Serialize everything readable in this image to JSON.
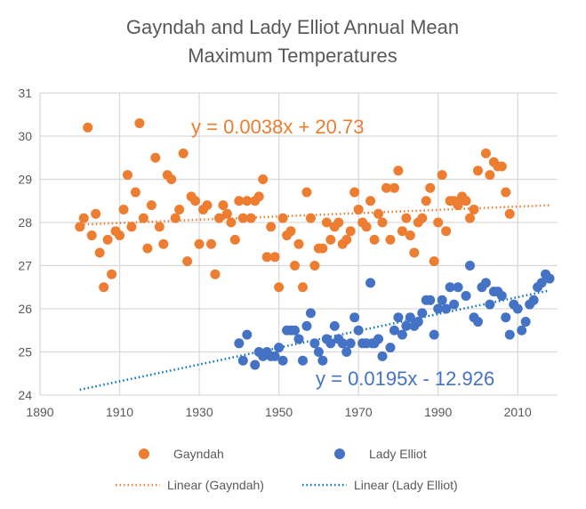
{
  "chart_data": {
    "type": "scatter",
    "title": [
      "Gayndah and Lady Elliot Annual Mean",
      "Maximum Temperatures"
    ],
    "xlabel": "",
    "ylabel": "",
    "xlim": [
      1890,
      2020
    ],
    "ylim": [
      24,
      31
    ],
    "x_ticks": [
      "1890",
      "1910",
      "1930",
      "1950",
      "1970",
      "1990",
      "2010"
    ],
    "x_tick_values": [
      1890,
      1910,
      1930,
      1950,
      1970,
      1990,
      2010
    ],
    "y_ticks": [
      "24",
      "25",
      "26",
      "27",
      "28",
      "29",
      "30",
      "31"
    ],
    "y_tick_values": [
      24,
      25,
      26,
      27,
      28,
      29,
      30,
      31
    ],
    "grid": true,
    "legend_placement": "bottom",
    "series": [
      {
        "name": "Gayndah",
        "color": "#ED7D31",
        "points": [
          [
            1900,
            27.9
          ],
          [
            1901,
            28.1
          ],
          [
            1902,
            30.2
          ],
          [
            1903,
            27.7
          ],
          [
            1904,
            28.2
          ],
          [
            1905,
            27.3
          ],
          [
            1906,
            26.5
          ],
          [
            1907,
            27.6
          ],
          [
            1908,
            26.8
          ],
          [
            1909,
            27.8
          ],
          [
            1910,
            27.7
          ],
          [
            1911,
            28.3
          ],
          [
            1912,
            29.1
          ],
          [
            1913,
            27.9
          ],
          [
            1914,
            28.7
          ],
          [
            1915,
            30.3
          ],
          [
            1916,
            28.1
          ],
          [
            1917,
            27.4
          ],
          [
            1918,
            28.4
          ],
          [
            1919,
            29.5
          ],
          [
            1920,
            27.9
          ],
          [
            1921,
            27.5
          ],
          [
            1922,
            29.1
          ],
          [
            1923,
            29.0
          ],
          [
            1924,
            28.1
          ],
          [
            1925,
            28.3
          ],
          [
            1926,
            29.6
          ],
          [
            1927,
            27.1
          ],
          [
            1928,
            28.6
          ],
          [
            1929,
            28.5
          ],
          [
            1930,
            27.5
          ],
          [
            1931,
            28.3
          ],
          [
            1932,
            28.4
          ],
          [
            1933,
            27.5
          ],
          [
            1934,
            26.8
          ],
          [
            1935,
            28.1
          ],
          [
            1936,
            28.4
          ],
          [
            1937,
            28.2
          ],
          [
            1938,
            28.0
          ],
          [
            1939,
            27.6
          ],
          [
            1940,
            28.5
          ],
          [
            1941,
            28.1
          ],
          [
            1942,
            28.5
          ],
          [
            1943,
            28.1
          ],
          [
            1944,
            28.5
          ],
          [
            1945,
            28.6
          ],
          [
            1946,
            29.0
          ],
          [
            1947,
            27.2
          ],
          [
            1948,
            27.9
          ],
          [
            1949,
            27.2
          ],
          [
            1950,
            26.5
          ],
          [
            1951,
            28.1
          ],
          [
            1952,
            27.7
          ],
          [
            1953,
            27.8
          ],
          [
            1954,
            27.0
          ],
          [
            1955,
            27.5
          ],
          [
            1956,
            26.5
          ],
          [
            1957,
            28.7
          ],
          [
            1958,
            28.1
          ],
          [
            1959,
            27.0
          ],
          [
            1960,
            27.4
          ],
          [
            1961,
            27.4
          ],
          [
            1962,
            28.0
          ],
          [
            1963,
            27.6
          ],
          [
            1964,
            27.9
          ],
          [
            1965,
            28.0
          ],
          [
            1966,
            27.5
          ],
          [
            1967,
            27.6
          ],
          [
            1968,
            27.8
          ],
          [
            1969,
            28.7
          ],
          [
            1970,
            28.3
          ],
          [
            1971,
            28.0
          ],
          [
            1972,
            27.9
          ],
          [
            1973,
            28.5
          ],
          [
            1974,
            27.6
          ],
          [
            1975,
            28.2
          ],
          [
            1976,
            28.0
          ],
          [
            1977,
            28.8
          ],
          [
            1978,
            27.6
          ],
          [
            1979,
            28.8
          ],
          [
            1980,
            29.2
          ],
          [
            1981,
            27.8
          ],
          [
            1982,
            28.1
          ],
          [
            1983,
            27.7
          ],
          [
            1984,
            27.3
          ],
          [
            1985,
            28.0
          ],
          [
            1986,
            28.1
          ],
          [
            1987,
            28.5
          ],
          [
            1988,
            28.8
          ],
          [
            1989,
            27.1
          ],
          [
            1990,
            28.0
          ],
          [
            1991,
            29.1
          ],
          [
            1992,
            27.8
          ],
          [
            1993,
            28.5
          ],
          [
            1994,
            28.5
          ],
          [
            1995,
            28.4
          ],
          [
            1996,
            28.6
          ],
          [
            1997,
            28.5
          ],
          [
            1998,
            28.1
          ],
          [
            1999,
            28.3
          ],
          [
            2000,
            29.2
          ],
          [
            2002,
            29.6
          ],
          [
            2003,
            29.1
          ],
          [
            2004,
            29.4
          ],
          [
            2005,
            29.3
          ],
          [
            2006,
            29.3
          ],
          [
            2007,
            28.7
          ],
          [
            2008,
            28.2
          ]
        ]
      },
      {
        "name": "Lady Elliot",
        "color": "#4472C4",
        "points": [
          [
            1940,
            25.2
          ],
          [
            1941,
            24.8
          ],
          [
            1942,
            25.4
          ],
          [
            1944,
            24.7
          ],
          [
            1945,
            25.0
          ],
          [
            1946,
            24.9
          ],
          [
            1947,
            25.0
          ],
          [
            1948,
            24.9
          ],
          [
            1949,
            24.9
          ],
          [
            1950,
            25.1
          ],
          [
            1951,
            24.8
          ],
          [
            1952,
            25.5
          ],
          [
            1953,
            25.5
          ],
          [
            1954,
            25.5
          ],
          [
            1955,
            25.3
          ],
          [
            1956,
            24.8
          ],
          [
            1957,
            25.6
          ],
          [
            1958,
            25.9
          ],
          [
            1959,
            25.2
          ],
          [
            1960,
            25.0
          ],
          [
            1961,
            24.8
          ],
          [
            1962,
            25.3
          ],
          [
            1963,
            25.2
          ],
          [
            1964,
            25.6
          ],
          [
            1965,
            25.3
          ],
          [
            1966,
            25.2
          ],
          [
            1967,
            25.0
          ],
          [
            1968,
            25.2
          ],
          [
            1969,
            25.8
          ],
          [
            1970,
            25.5
          ],
          [
            1971,
            25.2
          ],
          [
            1972,
            25.2
          ],
          [
            1973,
            26.6
          ],
          [
            1973.5,
            25.2
          ],
          [
            1974,
            25.2
          ],
          [
            1975,
            25.3
          ],
          [
            1976,
            24.9
          ],
          [
            1978,
            25.1
          ],
          [
            1979,
            25.5
          ],
          [
            1980,
            25.8
          ],
          [
            1981,
            25.4
          ],
          [
            1982,
            25.6
          ],
          [
            1983,
            25.8
          ],
          [
            1984,
            25.6
          ],
          [
            1985,
            25.7
          ],
          [
            1986,
            25.9
          ],
          [
            1987,
            26.2
          ],
          [
            1988,
            26.2
          ],
          [
            1989,
            25.4
          ],
          [
            1990,
            26.0
          ],
          [
            1991,
            26.2
          ],
          [
            1992,
            26.0
          ],
          [
            1993,
            26.5
          ],
          [
            1994,
            26.1
          ],
          [
            1995,
            26.5
          ],
          [
            1997,
            26.3
          ],
          [
            1998,
            27.0
          ],
          [
            1999,
            25.8
          ],
          [
            2000,
            25.7
          ],
          [
            2001,
            26.5
          ],
          [
            2002,
            26.6
          ],
          [
            2003,
            26.1
          ],
          [
            2004,
            26.4
          ],
          [
            2005,
            26.4
          ],
          [
            2006,
            26.3
          ],
          [
            2007,
            25.8
          ],
          [
            2008,
            25.4
          ],
          [
            2009,
            26.1
          ],
          [
            2010,
            26.0
          ],
          [
            2011,
            25.5
          ],
          [
            2012,
            25.7
          ],
          [
            2013,
            26.1
          ],
          [
            2014,
            26.2
          ],
          [
            2015,
            26.5
          ],
          [
            2016,
            26.6
          ],
          [
            2017,
            26.8
          ],
          [
            2018,
            26.7
          ]
        ]
      }
    ],
    "trendlines": [
      {
        "name": "Linear (Gayndah)",
        "color": "#ED7D31",
        "slope": 0.0038,
        "intercept": 20.73,
        "x_range": [
          1900,
          2018
        ],
        "equation": "y = 0.0038x + 20.73"
      },
      {
        "name": "Linear (Lady Elliot)",
        "color": "#0070C0",
        "slope": 0.0195,
        "intercept": -12.926,
        "x_range": [
          1900,
          2018
        ],
        "equation": "y = 0.0195x - 12.926"
      }
    ]
  }
}
